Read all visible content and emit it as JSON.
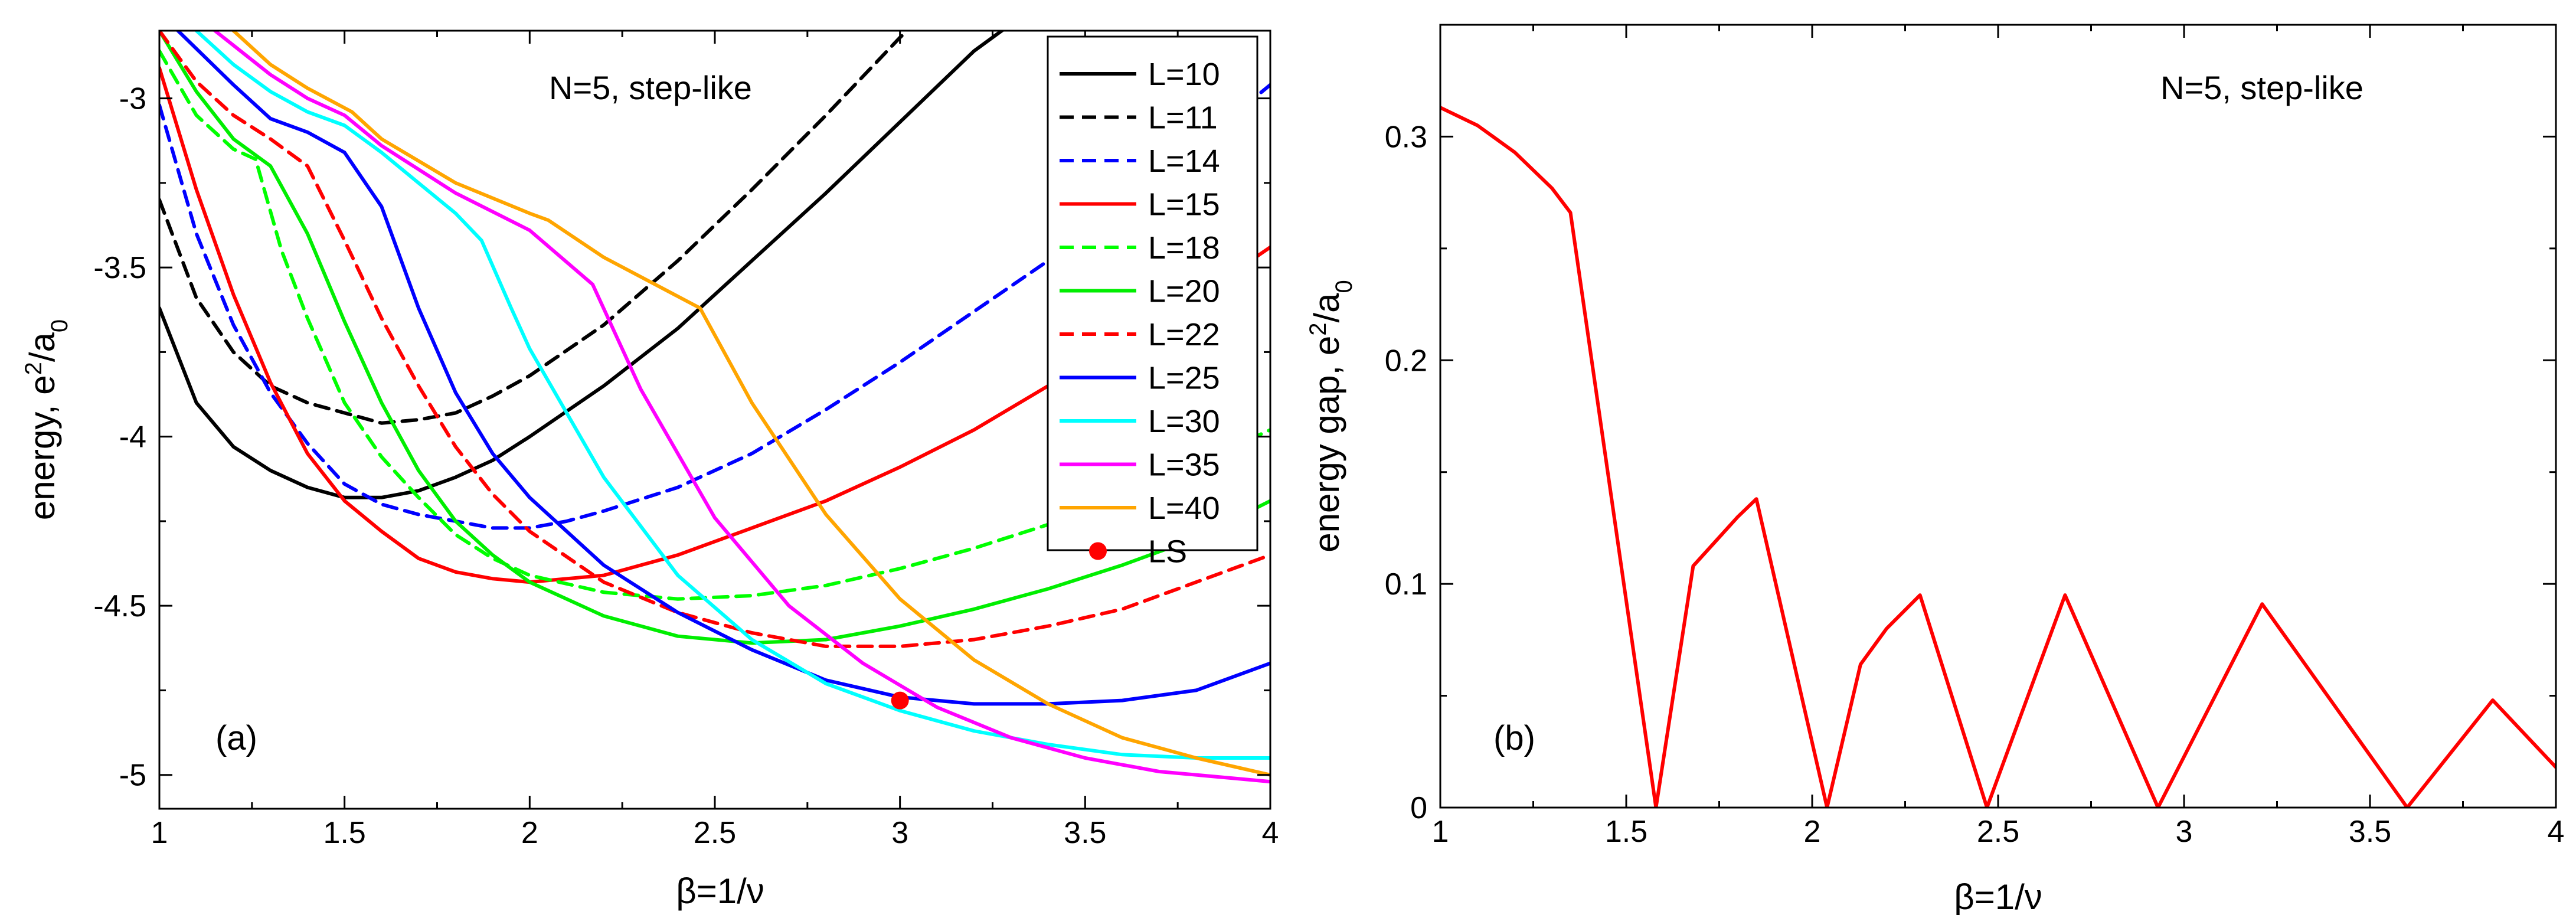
{
  "chart_data": [
    {
      "panel": "a",
      "type": "line",
      "annotation": "N=5, step-like",
      "panel_label": "(a)",
      "xlabel": "β=1/ν",
      "ylabel_main": "energy, e",
      "ylabel_sup": "2",
      "ylabel_slash": "/a",
      "ylabel_sub": "0",
      "xlim": [
        1,
        4
      ],
      "ylim": [
        -5.1,
        -2.8
      ],
      "xticks": [
        1,
        1.5,
        2,
        2.5,
        3,
        3.5,
        4
      ],
      "xtick_labels": [
        "1",
        "1.5",
        "2",
        "2.5",
        "3",
        "3.5",
        "4"
      ],
      "yticks": [
        -5,
        -4.5,
        -4,
        -3.5,
        -3
      ],
      "ytick_labels": [
        "-5",
        "-4.5",
        "-4",
        "-3.5",
        "-3"
      ],
      "legend_position": "top-right",
      "series": [
        {
          "name": "L=10",
          "color": "#000000",
          "dash": "solid",
          "points": [
            [
              1.0,
              -3.62
            ],
            [
              1.1,
              -3.9
            ],
            [
              1.2,
              -4.03
            ],
            [
              1.3,
              -4.1
            ],
            [
              1.4,
              -4.15
            ],
            [
              1.5,
              -4.18
            ],
            [
              1.6,
              -4.18
            ],
            [
              1.7,
              -4.16
            ],
            [
              1.8,
              -4.12
            ],
            [
              1.9,
              -4.07
            ],
            [
              2.0,
              -4.0
            ],
            [
              2.2,
              -3.85
            ],
            [
              2.4,
              -3.68
            ],
            [
              2.6,
              -3.48
            ],
            [
              2.8,
              -3.28
            ],
            [
              3.0,
              -3.07
            ],
            [
              3.2,
              -2.86
            ],
            [
              3.3,
              -2.78
            ]
          ]
        },
        {
          "name": "L=11",
          "color": "#000000",
          "dash": "dash",
          "points": [
            [
              1.0,
              -3.3
            ],
            [
              1.1,
              -3.59
            ],
            [
              1.2,
              -3.75
            ],
            [
              1.3,
              -3.85
            ],
            [
              1.4,
              -3.9
            ],
            [
              1.5,
              -3.93
            ],
            [
              1.6,
              -3.96
            ],
            [
              1.7,
              -3.95
            ],
            [
              1.8,
              -3.93
            ],
            [
              1.9,
              -3.88
            ],
            [
              2.0,
              -3.82
            ],
            [
              2.2,
              -3.67
            ],
            [
              2.4,
              -3.48
            ],
            [
              2.6,
              -3.27
            ],
            [
              2.8,
              -3.05
            ],
            [
              3.0,
              -2.82
            ],
            [
              3.02,
              -2.8
            ]
          ]
        },
        {
          "name": "L=14",
          "color": "#0000ff",
          "dash": "dash",
          "points": [
            [
              1.0,
              -3.02
            ],
            [
              1.1,
              -3.4
            ],
            [
              1.2,
              -3.67
            ],
            [
              1.3,
              -3.87
            ],
            [
              1.4,
              -4.02
            ],
            [
              1.5,
              -4.14
            ],
            [
              1.6,
              -4.2
            ],
            [
              1.7,
              -4.23
            ],
            [
              1.8,
              -4.25
            ],
            [
              1.9,
              -4.27
            ],
            [
              2.0,
              -4.27
            ],
            [
              2.1,
              -4.25
            ],
            [
              2.2,
              -4.22
            ],
            [
              2.4,
              -4.15
            ],
            [
              2.6,
              -4.05
            ],
            [
              2.8,
              -3.92
            ],
            [
              3.0,
              -3.78
            ],
            [
              3.2,
              -3.63
            ],
            [
              3.4,
              -3.48
            ],
            [
              3.6,
              -3.31
            ],
            [
              3.8,
              -3.14
            ],
            [
              4.0,
              -2.96
            ]
          ]
        },
        {
          "name": "L=15",
          "color": "#ff0000",
          "dash": "solid",
          "points": [
            [
              1.0,
              -2.91
            ],
            [
              1.1,
              -3.27
            ],
            [
              1.2,
              -3.58
            ],
            [
              1.3,
              -3.84
            ],
            [
              1.4,
              -4.05
            ],
            [
              1.5,
              -4.19
            ],
            [
              1.6,
              -4.28
            ],
            [
              1.7,
              -4.36
            ],
            [
              1.8,
              -4.4
            ],
            [
              1.9,
              -4.42
            ],
            [
              2.0,
              -4.43
            ],
            [
              2.1,
              -4.42
            ],
            [
              2.2,
              -4.41
            ],
            [
              2.4,
              -4.35
            ],
            [
              2.6,
              -4.27
            ],
            [
              2.8,
              -4.19
            ],
            [
              3.0,
              -4.09
            ],
            [
              3.2,
              -3.98
            ],
            [
              3.4,
              -3.85
            ],
            [
              3.6,
              -3.73
            ],
            [
              3.8,
              -3.59
            ],
            [
              4.0,
              -3.44
            ]
          ]
        },
        {
          "name": "L=18",
          "color": "#00ff00",
          "dash": "dash",
          "points": [
            [
              1.0,
              -2.86
            ],
            [
              1.1,
              -3.05
            ],
            [
              1.2,
              -3.15
            ],
            [
              1.26,
              -3.18
            ],
            [
              1.33,
              -3.45
            ],
            [
              1.4,
              -3.65
            ],
            [
              1.5,
              -3.9
            ],
            [
              1.6,
              -4.06
            ],
            [
              1.7,
              -4.18
            ],
            [
              1.8,
              -4.29
            ],
            [
              1.9,
              -4.36
            ],
            [
              2.0,
              -4.41
            ],
            [
              2.2,
              -4.46
            ],
            [
              2.4,
              -4.48
            ],
            [
              2.6,
              -4.47
            ],
            [
              2.8,
              -4.44
            ],
            [
              3.0,
              -4.39
            ],
            [
              3.2,
              -4.33
            ],
            [
              3.4,
              -4.26
            ],
            [
              3.6,
              -4.17
            ],
            [
              3.8,
              -4.08
            ],
            [
              4.0,
              -3.98
            ]
          ]
        },
        {
          "name": "L=20",
          "color": "#00ee00",
          "dash": "solid",
          "points": [
            [
              1.0,
              -2.8
            ],
            [
              1.1,
              -2.98
            ],
            [
              1.2,
              -3.12
            ],
            [
              1.3,
              -3.2
            ],
            [
              1.4,
              -3.4
            ],
            [
              1.5,
              -3.66
            ],
            [
              1.6,
              -3.9
            ],
            [
              1.7,
              -4.1
            ],
            [
              1.8,
              -4.25
            ],
            [
              1.9,
              -4.35
            ],
            [
              2.0,
              -4.43
            ],
            [
              2.2,
              -4.53
            ],
            [
              2.4,
              -4.59
            ],
            [
              2.6,
              -4.61
            ],
            [
              2.8,
              -4.6
            ],
            [
              3.0,
              -4.56
            ],
            [
              3.2,
              -4.51
            ],
            [
              3.4,
              -4.45
            ],
            [
              3.6,
              -4.38
            ],
            [
              3.8,
              -4.3
            ],
            [
              4.0,
              -4.19
            ]
          ]
        },
        {
          "name": "L=22",
          "color": "#ff0000",
          "dash": "dash",
          "points": [
            [
              1.0,
              -2.8
            ],
            [
              1.1,
              -2.95
            ],
            [
              1.2,
              -3.05
            ],
            [
              1.3,
              -3.12
            ],
            [
              1.4,
              -3.2
            ],
            [
              1.5,
              -3.42
            ],
            [
              1.6,
              -3.65
            ],
            [
              1.7,
              -3.85
            ],
            [
              1.8,
              -4.03
            ],
            [
              1.9,
              -4.17
            ],
            [
              2.0,
              -4.28
            ],
            [
              2.2,
              -4.43
            ],
            [
              2.4,
              -4.52
            ],
            [
              2.6,
              -4.58
            ],
            [
              2.8,
              -4.62
            ],
            [
              3.0,
              -4.62
            ],
            [
              3.2,
              -4.6
            ],
            [
              3.4,
              -4.56
            ],
            [
              3.6,
              -4.51
            ],
            [
              3.8,
              -4.43
            ],
            [
              4.0,
              -4.35
            ]
          ]
        },
        {
          "name": "L=25",
          "color": "#0000ff",
          "dash": "solid",
          "points": [
            [
              1.05,
              -2.8
            ],
            [
              1.2,
              -2.96
            ],
            [
              1.3,
              -3.06
            ],
            [
              1.4,
              -3.1
            ],
            [
              1.5,
              -3.16
            ],
            [
              1.6,
              -3.32
            ],
            [
              1.7,
              -3.62
            ],
            [
              1.8,
              -3.87
            ],
            [
              1.9,
              -4.05
            ],
            [
              2.0,
              -4.18
            ],
            [
              2.2,
              -4.38
            ],
            [
              2.4,
              -4.52
            ],
            [
              2.6,
              -4.63
            ],
            [
              2.8,
              -4.72
            ],
            [
              3.0,
              -4.77
            ],
            [
              3.2,
              -4.79
            ],
            [
              3.4,
              -4.79
            ],
            [
              3.6,
              -4.78
            ],
            [
              3.8,
              -4.75
            ],
            [
              4.0,
              -4.67
            ]
          ]
        },
        {
          "name": "L=30",
          "color": "#00ffff",
          "dash": "solid",
          "points": [
            [
              1.1,
              -2.8
            ],
            [
              1.2,
              -2.9
            ],
            [
              1.3,
              -2.98
            ],
            [
              1.4,
              -3.04
            ],
            [
              1.5,
              -3.08
            ],
            [
              1.6,
              -3.16
            ],
            [
              1.7,
              -3.25
            ],
            [
              1.8,
              -3.34
            ],
            [
              1.87,
              -3.42
            ],
            [
              1.95,
              -3.62
            ],
            [
              2.0,
              -3.74
            ],
            [
              2.2,
              -4.12
            ],
            [
              2.4,
              -4.41
            ],
            [
              2.6,
              -4.6
            ],
            [
              2.8,
              -4.73
            ],
            [
              3.0,
              -4.81
            ],
            [
              3.2,
              -4.87
            ],
            [
              3.4,
              -4.91
            ],
            [
              3.6,
              -4.94
            ],
            [
              3.8,
              -4.95
            ],
            [
              4.0,
              -4.95
            ]
          ]
        },
        {
          "name": "L=35",
          "color": "#ff00ff",
          "dash": "solid",
          "points": [
            [
              1.15,
              -2.8
            ],
            [
              1.3,
              -2.93
            ],
            [
              1.4,
              -3.0
            ],
            [
              1.5,
              -3.05
            ],
            [
              1.6,
              -3.14
            ],
            [
              1.8,
              -3.28
            ],
            [
              2.0,
              -3.39
            ],
            [
              2.17,
              -3.55
            ],
            [
              2.3,
              -3.86
            ],
            [
              2.5,
              -4.24
            ],
            [
              2.7,
              -4.5
            ],
            [
              2.9,
              -4.67
            ],
            [
              3.1,
              -4.8
            ],
            [
              3.3,
              -4.89
            ],
            [
              3.5,
              -4.95
            ],
            [
              3.7,
              -4.99
            ],
            [
              3.9,
              -5.01
            ],
            [
              4.0,
              -5.02
            ]
          ]
        },
        {
          "name": "L=40",
          "color": "#ffa500",
          "dash": "solid",
          "points": [
            [
              1.2,
              -2.8
            ],
            [
              1.3,
              -2.9
            ],
            [
              1.4,
              -2.97
            ],
            [
              1.52,
              -3.04
            ],
            [
              1.6,
              -3.12
            ],
            [
              1.8,
              -3.25
            ],
            [
              2.0,
              -3.34
            ],
            [
              2.05,
              -3.36
            ],
            [
              2.2,
              -3.47
            ],
            [
              2.46,
              -3.62
            ],
            [
              2.6,
              -3.9
            ],
            [
              2.8,
              -4.23
            ],
            [
              3.0,
              -4.48
            ],
            [
              3.2,
              -4.66
            ],
            [
              3.4,
              -4.79
            ],
            [
              3.6,
              -4.89
            ],
            [
              3.8,
              -4.95
            ],
            [
              4.0,
              -5.0
            ]
          ]
        }
      ],
      "markers": [
        {
          "name": "LS",
          "color": "#ff0000",
          "x": 3.0,
          "y": -4.78
        }
      ]
    },
    {
      "panel": "b",
      "type": "line",
      "annotation": "N=5, step-like",
      "panel_label": "(b)",
      "xlabel": "β=1/ν",
      "ylabel_main": "energy gap, e",
      "ylabel_sup": "2",
      "ylabel_slash": "/a",
      "ylabel_sub": "0",
      "xlim": [
        1,
        4
      ],
      "ylim": [
        0,
        0.35
      ],
      "xticks": [
        1,
        1.5,
        2,
        2.5,
        3,
        3.5,
        4
      ],
      "xtick_labels": [
        "1",
        "1.5",
        "2",
        "2.5",
        "3",
        "3.5",
        "4"
      ],
      "yticks": [
        0,
        0.1,
        0.2,
        0.3
      ],
      "ytick_labels": [
        "0",
        "0.1",
        "0.2",
        "0.3"
      ],
      "series": [
        {
          "name": "gap",
          "color": "#ff0000",
          "dash": "solid",
          "points": [
            [
              1.0,
              0.313
            ],
            [
              1.1,
              0.305
            ],
            [
              1.2,
              0.293
            ],
            [
              1.3,
              0.277
            ],
            [
              1.35,
              0.266
            ],
            [
              1.58,
              0.0
            ],
            [
              1.68,
              0.108
            ],
            [
              1.8,
              0.13
            ],
            [
              1.85,
              0.138
            ],
            [
              2.04,
              0.0
            ],
            [
              2.13,
              0.064
            ],
            [
              2.2,
              0.08
            ],
            [
              2.29,
              0.095
            ],
            [
              2.47,
              0.0
            ],
            [
              2.68,
              0.095
            ],
            [
              2.93,
              0.0
            ],
            [
              3.21,
              0.091
            ],
            [
              3.6,
              0.0
            ],
            [
              3.83,
              0.048
            ],
            [
              4.0,
              0.018
            ]
          ]
        }
      ]
    }
  ]
}
